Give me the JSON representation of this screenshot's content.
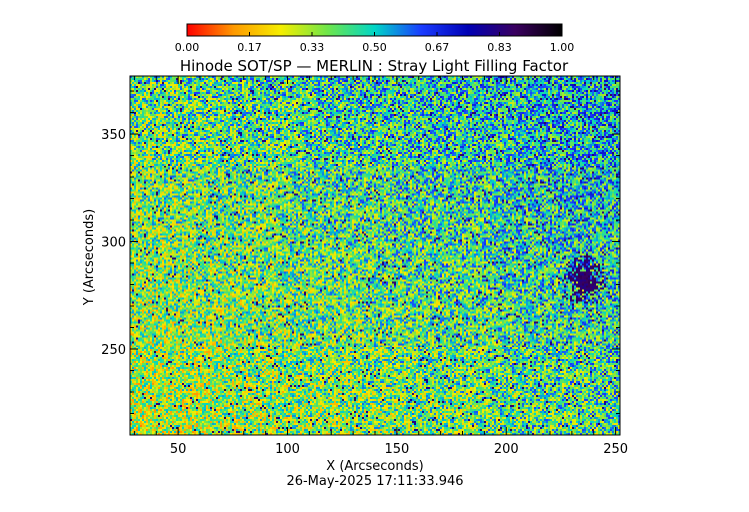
{
  "chart_data": {
    "type": "heatmap",
    "title": "Hinode SOT/SP — MERLIN : Stray Light Filling Factor",
    "xlabel": "X (Arcseconds)",
    "ylabel": "Y (Arcseconds)",
    "xlim": [
      28,
      252
    ],
    "ylim": [
      210,
      377
    ],
    "x_ticks": [
      50,
      100,
      150,
      200,
      250
    ],
    "y_ticks": [
      250,
      300,
      350
    ],
    "colorbar": {
      "range": [
        0.0,
        1.0
      ],
      "tick_values": [
        0.0,
        0.1667,
        0.3333,
        0.5,
        0.6667,
        0.8333,
        1.0
      ],
      "tick_labels": [
        "0.00",
        "0.17",
        "0.33",
        "0.50",
        "0.67",
        "0.83",
        "1.00"
      ],
      "colormap": [
        "#ff0000",
        "#ff9a00",
        "#f5ee00",
        "#6ee64a",
        "#00d6c6",
        "#1a3cff",
        "#0000b4",
        "#3a0060",
        "#000000"
      ]
    },
    "field_description": {
      "dominant_range": [
        0.3,
        0.6
      ],
      "low_values_concentration": "lower-left",
      "high_value_cluster_center": [
        236,
        282
      ],
      "high_value_cluster_value": 0.85
    },
    "timestamp": "26-May-2025 17:11:33.946"
  }
}
